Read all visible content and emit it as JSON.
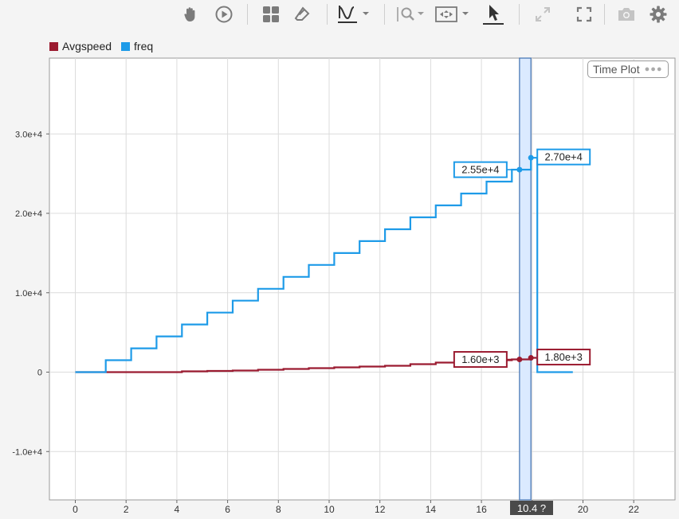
{
  "toolbar": {
    "buttons": [
      {
        "name": "pan-icon"
      },
      {
        "name": "play-icon"
      },
      {
        "name": "grid-layout-icon"
      },
      {
        "name": "eraser-icon"
      },
      {
        "name": "signal-style-icon"
      },
      {
        "name": "zoom-icon"
      },
      {
        "name": "fit-icon"
      },
      {
        "name": "cursor-icon"
      },
      {
        "name": "expand-icon"
      },
      {
        "name": "fullscreen-icon"
      },
      {
        "name": "camera-icon"
      },
      {
        "name": "gear-icon"
      }
    ]
  },
  "legend": [
    {
      "label": "Avgspeed",
      "color": "#9b1b30"
    },
    {
      "label": "freq",
      "color": "#1e9be8"
    }
  ],
  "plot_tag": {
    "label": "Time Plot",
    "dots": "●●●"
  },
  "cursor_readout": "10.4 ?",
  "chart_data": {
    "type": "line",
    "xlim": [
      -1,
      24.5
    ],
    "ylim": [
      -16000,
      39500
    ],
    "x_ticks": [
      "0",
      "2",
      "4",
      "6",
      "8",
      "10",
      "12",
      "14",
      "16",
      "18",
      "20",
      "22"
    ],
    "x_tick_values": [
      0,
      2,
      4,
      6,
      8,
      10,
      12,
      14,
      16,
      18,
      20,
      22
    ],
    "y_ticks": [
      "-1.0e+4",
      "0",
      "1.0e+4",
      "2.0e+4",
      "3.0e+4"
    ],
    "y_tick_values": [
      -10000,
      0,
      10000,
      20000,
      30000
    ],
    "grid": true,
    "series": [
      {
        "name": "freq",
        "color": "#1e9be8",
        "step": true,
        "x": [
          0,
          1.2,
          1.2,
          2.2,
          2.2,
          3.2,
          3.2,
          4.2,
          4.2,
          5.2,
          5.2,
          6.2,
          6.2,
          7.2,
          7.2,
          8.2,
          8.2,
          9.2,
          9.2,
          10.2,
          10.2,
          11.2,
          11.2,
          12.2,
          12.2,
          13.2,
          13.2,
          14.2,
          14.2,
          15.2,
          15.2,
          16.2,
          16.2,
          17.2,
          17.2,
          17.5,
          17.5,
          17.95,
          17.95,
          18.2,
          18.2,
          19.6
        ],
        "y": [
          0,
          0,
          1500,
          1500,
          3000,
          3000,
          4500,
          4500,
          6000,
          6000,
          7500,
          7500,
          9000,
          9000,
          10500,
          10500,
          12000,
          12000,
          13500,
          13500,
          15000,
          15000,
          16500,
          16500,
          18000,
          18000,
          19500,
          19500,
          21000,
          21000,
          22500,
          22500,
          24000,
          24000,
          25500,
          25500,
          25500,
          25500,
          27000,
          27000,
          0,
          0
        ]
      },
      {
        "name": "Avgspeed",
        "color": "#9b1b30",
        "step": true,
        "x": [
          0,
          1.2,
          2.2,
          3.2,
          4.2,
          5.2,
          6.2,
          7.2,
          8.2,
          9.2,
          10.2,
          11.2,
          12.2,
          13.2,
          14.2,
          15.2,
          16.2,
          17.2,
          17.5,
          17.95,
          18.2
        ],
        "y": [
          0,
          0,
          0,
          0,
          100,
          150,
          200,
          300,
          400,
          500,
          600,
          700,
          800,
          1000,
          1200,
          1400,
          1500,
          1600,
          1600,
          1800,
          1800
        ]
      }
    ],
    "cursors": [
      {
        "x": 17.5,
        "series": "freq",
        "value": 25500,
        "label": "2.55e+4",
        "side": "left"
      },
      {
        "x": 17.95,
        "series": "freq",
        "value": 27000,
        "label": "2.70e+4",
        "side": "right"
      },
      {
        "x": 17.5,
        "series": "Avgspeed",
        "value": 1600,
        "label": "1.60e+3",
        "side": "left"
      },
      {
        "x": 17.95,
        "series": "Avgspeed",
        "value": 1800,
        "label": "1.80e+3",
        "side": "right"
      }
    ],
    "cursor_band": [
      17.5,
      17.95
    ]
  }
}
